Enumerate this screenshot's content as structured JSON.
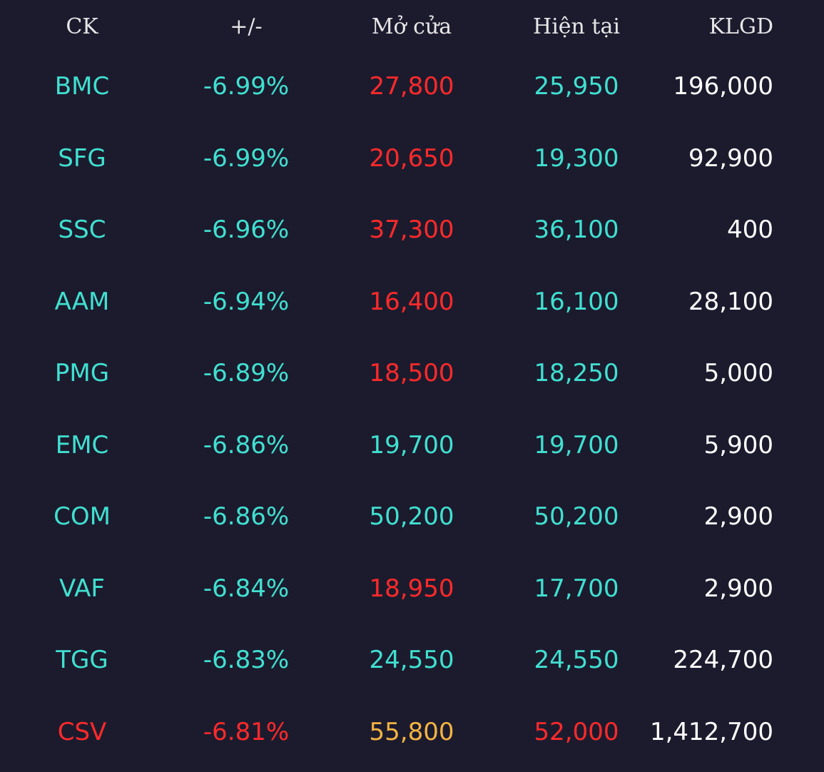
{
  "colors": {
    "background": "#1c1b2e",
    "header_text": "#e6e6e6",
    "floor": "#40e0d0",
    "down": "#ff2a2a",
    "reference": "#f5b342",
    "volume": "#ffffff"
  },
  "header": {
    "ck": "CK",
    "change": "+/-",
    "open": "Mở cửa",
    "current": "Hiện tại",
    "volume": "KLGD"
  },
  "rows": [
    {
      "ck": "BMC",
      "change": "-6.99%",
      "open": "27,800",
      "current": "25,950",
      "volume": "196,000",
      "ck_color": "floor",
      "change_color": "floor",
      "open_color": "down",
      "current_color": "floor"
    },
    {
      "ck": "SFG",
      "change": "-6.99%",
      "open": "20,650",
      "current": "19,300",
      "volume": "92,900",
      "ck_color": "floor",
      "change_color": "floor",
      "open_color": "down",
      "current_color": "floor"
    },
    {
      "ck": "SSC",
      "change": "-6.96%",
      "open": "37,300",
      "current": "36,100",
      "volume": "400",
      "ck_color": "floor",
      "change_color": "floor",
      "open_color": "down",
      "current_color": "floor"
    },
    {
      "ck": "AAM",
      "change": "-6.94%",
      "open": "16,400",
      "current": "16,100",
      "volume": "28,100",
      "ck_color": "floor",
      "change_color": "floor",
      "open_color": "down",
      "current_color": "floor"
    },
    {
      "ck": "PMG",
      "change": "-6.89%",
      "open": "18,500",
      "current": "18,250",
      "volume": "5,000",
      "ck_color": "floor",
      "change_color": "floor",
      "open_color": "down",
      "current_color": "floor"
    },
    {
      "ck": "EMC",
      "change": "-6.86%",
      "open": "19,700",
      "current": "19,700",
      "volume": "5,900",
      "ck_color": "floor",
      "change_color": "floor",
      "open_color": "floor",
      "current_color": "floor"
    },
    {
      "ck": "COM",
      "change": "-6.86%",
      "open": "50,200",
      "current": "50,200",
      "volume": "2,900",
      "ck_color": "floor",
      "change_color": "floor",
      "open_color": "floor",
      "current_color": "floor"
    },
    {
      "ck": "VAF",
      "change": "-6.84%",
      "open": "18,950",
      "current": "17,700",
      "volume": "2,900",
      "ck_color": "floor",
      "change_color": "floor",
      "open_color": "down",
      "current_color": "floor"
    },
    {
      "ck": "TGG",
      "change": "-6.83%",
      "open": "24,550",
      "current": "24,550",
      "volume": "224,700",
      "ck_color": "floor",
      "change_color": "floor",
      "open_color": "floor",
      "current_color": "floor"
    },
    {
      "ck": "CSV",
      "change": "-6.81%",
      "open": "55,800",
      "current": "52,000",
      "volume": "1,412,700",
      "ck_color": "down",
      "change_color": "down",
      "open_color": "reference",
      "current_color": "down"
    }
  ]
}
